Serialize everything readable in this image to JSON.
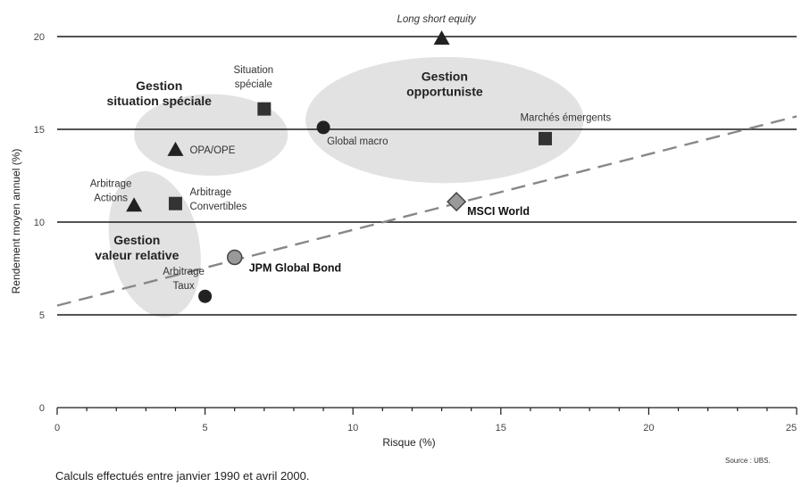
{
  "chart_data": {
    "type": "scatter",
    "xlabel": "Risque (%)",
    "ylabel": "Rendement moyen annuel (%)",
    "xlim": [
      0,
      25
    ],
    "ylim": [
      0,
      20
    ],
    "xticks": [
      0,
      5,
      10,
      15,
      20,
      25
    ],
    "yticks": [
      0,
      5,
      10,
      15,
      20
    ],
    "horizontal_grid": true,
    "points": [
      {
        "label": "Long short equity",
        "x": 13,
        "y": 19.9,
        "marker": "triangle",
        "bold": false,
        "italic": true
      },
      {
        "label": "Situation spéciale",
        "x": 7,
        "y": 16.1,
        "marker": "square",
        "bold": false,
        "italic": false
      },
      {
        "label": "OPA/OPE",
        "x": 4,
        "y": 13.9,
        "marker": "triangle",
        "bold": false,
        "italic": false
      },
      {
        "label": "Global macro",
        "x": 9,
        "y": 15.1,
        "marker": "circle",
        "bold": false,
        "italic": false
      },
      {
        "label": "Marchés émergents",
        "x": 16.5,
        "y": 14.5,
        "marker": "square",
        "bold": false,
        "italic": false
      },
      {
        "label": "Arbitrage Actions",
        "x": 2.6,
        "y": 10.9,
        "marker": "triangle",
        "bold": false,
        "italic": false
      },
      {
        "label": "Arbitrage Convertibles",
        "x": 4,
        "y": 11.0,
        "marker": "square",
        "bold": false,
        "italic": false
      },
      {
        "label": "MSCI World",
        "x": 13.5,
        "y": 11.1,
        "marker": "diamond",
        "bold": true,
        "italic": false
      },
      {
        "label": "JPM Global Bond",
        "x": 6,
        "y": 8.1,
        "marker": "circle-grey",
        "bold": true,
        "italic": false
      },
      {
        "label": "Arbitrage Taux",
        "x": 5,
        "y": 6.0,
        "marker": "circle",
        "bold": false,
        "italic": false
      }
    ],
    "trendline": {
      "style": "dashed",
      "x": [
        0,
        25
      ],
      "y": [
        5.5,
        15.7
      ]
    },
    "groups": [
      {
        "name_lines": [
          "Gestion",
          "situation spéciale"
        ],
        "cx": 5.2,
        "cy": 14.7,
        "rx": 2.6,
        "ry": 2.2
      },
      {
        "name_lines": [
          "Gestion",
          "opportuniste"
        ],
        "cx": 13.1,
        "cy": 15.5,
        "rx": 4.7,
        "ry": 3.4
      },
      {
        "name_lines": [
          "Gestion",
          "valeur relative"
        ],
        "cx": 3.3,
        "cy": 8.8,
        "rx": 1.5,
        "ry": 4.0,
        "rotate": -12
      }
    ],
    "note": "Calculs effectués entre janvier 1990 et avril 2000.",
    "source": "Source : UBS."
  }
}
